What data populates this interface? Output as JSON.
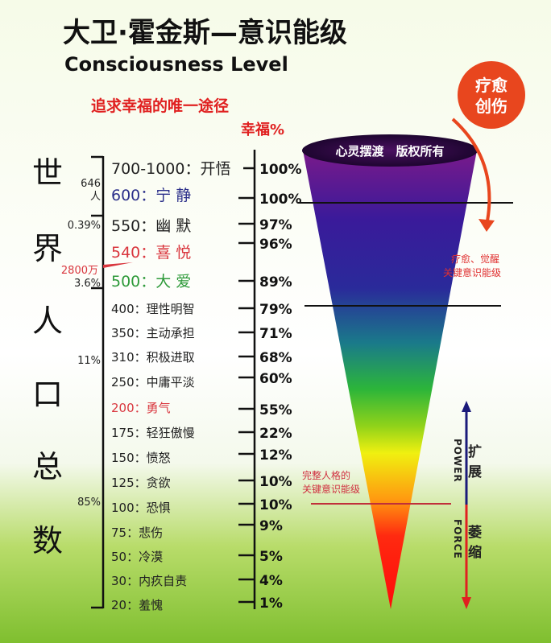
{
  "title_cn": "大卫·霍金斯—意识能级",
  "title_en": "Consciousness Level",
  "subtitle": "追求幸福的唯一途径",
  "happiness_header": "幸福%",
  "badge": "疗愈\n创伤",
  "badge_line1": "疗愈",
  "badge_line2": "创伤",
  "funnel_label": "心灵摆渡　版权所有",
  "note_awaken_1": "疗愈、觉醒",
  "note_awaken_2": "关键意识能级",
  "note_whole_1": "完整人格的",
  "note_whole_2": "关键意识能级",
  "power": "POWER",
  "expand": "扩展",
  "force": "FORCE",
  "shrink": "萎缩",
  "population_chars": [
    "世",
    "界",
    "人",
    "口",
    "总",
    "数"
  ],
  "population_notes": {
    "n646": "646",
    "ren": "人",
    "p039": "0.39%",
    "n2800": "2800万",
    "p36": "3.6%",
    "p11": "11%",
    "p85": "85%"
  },
  "levels": [
    {
      "label": "700-1000：开悟",
      "pct": "100%",
      "color": "#222222"
    },
    {
      "label": "600：宁 静",
      "pct": "100%",
      "color": "#2b2f8a"
    },
    {
      "label": "550：幽 默",
      "pct": "97%",
      "color": "#222222"
    },
    {
      "label": "540：喜 悦",
      "pct": "96%",
      "color": "#d9363e"
    },
    {
      "label": "500：大 爱",
      "pct": "89%",
      "color": "#2e9a3a"
    },
    {
      "label": "400：理性明智",
      "pct": "79%",
      "color": "#222222"
    },
    {
      "label": "350：主动承担",
      "pct": "71%",
      "color": "#222222"
    },
    {
      "label": "310：积极进取",
      "pct": "68%",
      "color": "#222222"
    },
    {
      "label": "250：中庸平淡",
      "pct": "60%",
      "color": "#222222"
    },
    {
      "label": "200：勇气",
      "pct": "55%",
      "color": "#d9363e"
    },
    {
      "label": "175：轻狂傲慢",
      "pct": "22%",
      "color": "#222222"
    },
    {
      "label": "150：愤怒",
      "pct": "12%",
      "color": "#222222"
    },
    {
      "label": "125：贪欲",
      "pct": "10%",
      "color": "#222222"
    },
    {
      "label": "100：恐惧",
      "pct": "10%",
      "color": "#222222"
    },
    {
      "label": "75：悲伤",
      "pct": "9%",
      "color": "#222222"
    },
    {
      "label": "50：冷漠",
      "pct": "5%",
      "color": "#222222"
    },
    {
      "label": "30：内疚自责",
      "pct": "4%",
      "color": "#222222"
    },
    {
      "label": "20：羞愧",
      "pct": "1%",
      "color": "#222222"
    }
  ]
}
